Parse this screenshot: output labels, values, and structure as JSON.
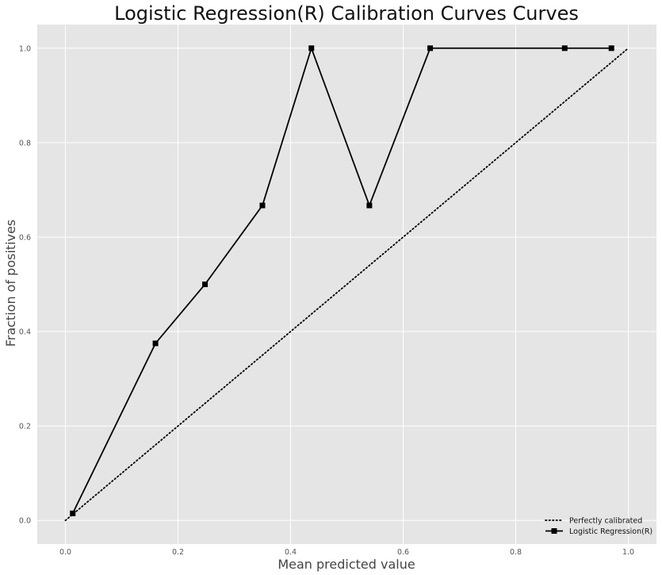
{
  "chart_data": {
    "type": "line",
    "title": "Logistic Regression(R) Calibration Curves Curves",
    "xlabel": "Mean predicted value",
    "ylabel": "Fraction of positives",
    "xlim": [
      -0.05,
      1.05
    ],
    "ylim": [
      -0.05,
      1.05
    ],
    "xticks": [
      0.0,
      0.2,
      0.4,
      0.6,
      0.8,
      1.0
    ],
    "yticks": [
      0.0,
      0.2,
      0.4,
      0.6,
      0.8,
      1.0
    ],
    "xtick_labels": [
      "0.0",
      "0.2",
      "0.4",
      "0.6",
      "0.8",
      "1.0"
    ],
    "ytick_labels": [
      "0.0",
      "0.2",
      "0.4",
      "0.6",
      "0.8",
      "1.0"
    ],
    "grid": true,
    "legend_position": "bottom-right",
    "series": [
      {
        "name": "Perfectly calibrated",
        "style": "dotted",
        "color": "#000000",
        "x": [
          0.0,
          1.0
        ],
        "y": [
          0.0,
          1.0
        ]
      },
      {
        "name": "Logistic Regression(R)",
        "style": "solid",
        "marker": "square",
        "color": "#000000",
        "x": [
          0.013,
          0.16,
          0.248,
          0.35,
          0.437,
          0.54,
          0.648,
          0.887,
          0.97
        ],
        "y": [
          0.015,
          0.375,
          0.5,
          0.667,
          1.0,
          0.667,
          1.0,
          1.0,
          1.0
        ]
      }
    ]
  },
  "colors": {
    "plot_background": "#e5e5e5",
    "grid": "#ffffff"
  }
}
